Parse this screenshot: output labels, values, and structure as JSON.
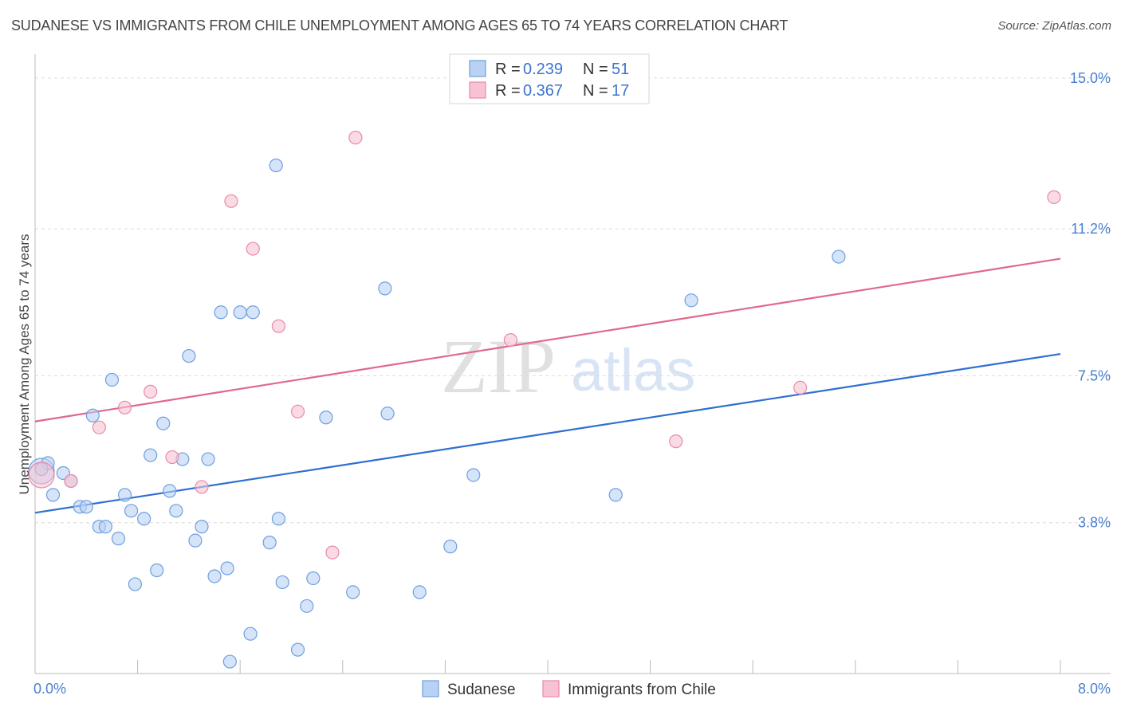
{
  "title": "SUDANESE VS IMMIGRANTS FROM CHILE UNEMPLOYMENT AMONG AGES 65 TO 74 YEARS CORRELATION CHART",
  "source": "Source: ZipAtlas.com",
  "watermark": {
    "part1": "ZIP",
    "part2": "atlas"
  },
  "chart_data": {
    "type": "scatter",
    "xlabel": "",
    "ylabel": "Unemployment Among Ages 65 to 74 years",
    "xlim": [
      0,
      8.0
    ],
    "ylim": [
      0,
      15.4
    ],
    "x_tick_labels": {
      "left": "0.0%",
      "right": "8.0%"
    },
    "y_ticks": [
      {
        "value": 3.8,
        "label": "3.8%"
      },
      {
        "value": 7.5,
        "label": "7.5%"
      },
      {
        "value": 11.2,
        "label": "11.2%"
      },
      {
        "value": 15.0,
        "label": "15.0%"
      }
    ],
    "series": [
      {
        "name": "Sudanese",
        "color": "#6f9fe0",
        "fill": "#b9d2f3",
        "line_color": "#2e6fd0",
        "R": "0.239",
        "N": "51",
        "trend": {
          "x": [
            0,
            8.0
          ],
          "y": [
            4.05,
            8.05
          ]
        },
        "points": [
          [
            0.05,
            5.1
          ],
          [
            0.1,
            5.3
          ],
          [
            0.14,
            4.5
          ],
          [
            0.22,
            5.05
          ],
          [
            0.28,
            4.85
          ],
          [
            0.35,
            4.2
          ],
          [
            0.4,
            4.2
          ],
          [
            0.45,
            6.5
          ],
          [
            0.5,
            3.7
          ],
          [
            0.55,
            3.7
          ],
          [
            0.6,
            7.4
          ],
          [
            0.65,
            3.4
          ],
          [
            0.7,
            4.5
          ],
          [
            0.75,
            4.1
          ],
          [
            0.78,
            2.25
          ],
          [
            0.85,
            3.9
          ],
          [
            0.9,
            5.5
          ],
          [
            0.95,
            2.6
          ],
          [
            1.0,
            6.3
          ],
          [
            1.05,
            4.6
          ],
          [
            1.1,
            4.1
          ],
          [
            1.15,
            5.4
          ],
          [
            1.2,
            8.0
          ],
          [
            1.25,
            3.35
          ],
          [
            1.3,
            3.7
          ],
          [
            1.35,
            5.4
          ],
          [
            1.4,
            2.45
          ],
          [
            1.45,
            9.1
          ],
          [
            1.5,
            2.65
          ],
          [
            1.52,
            0.3
          ],
          [
            1.6,
            9.1
          ],
          [
            1.68,
            1.0
          ],
          [
            1.7,
            9.1
          ],
          [
            1.83,
            3.3
          ],
          [
            1.88,
            12.8
          ],
          [
            1.9,
            3.9
          ],
          [
            1.93,
            2.3
          ],
          [
            2.05,
            0.6
          ],
          [
            2.12,
            1.7
          ],
          [
            2.17,
            2.4
          ],
          [
            2.27,
            6.45
          ],
          [
            2.48,
            2.05
          ],
          [
            2.73,
            9.7
          ],
          [
            2.75,
            6.55
          ],
          [
            3.0,
            2.05
          ],
          [
            3.24,
            3.2
          ],
          [
            3.42,
            5.0
          ],
          [
            4.53,
            4.5
          ],
          [
            5.12,
            9.4
          ],
          [
            6.27,
            10.5
          ],
          [
            0.05,
            5.15
          ]
        ]
      },
      {
        "name": "Immigrants from Chile",
        "color": "#e88aa8",
        "fill": "#f7c3d2",
        "line_color": "#e0688e",
        "R": "0.367",
        "N": "17",
        "trend": {
          "x": [
            0,
            8.0
          ],
          "y": [
            6.35,
            10.45
          ]
        },
        "points": [
          [
            0.05,
            5.0
          ],
          [
            0.28,
            4.85
          ],
          [
            0.5,
            6.2
          ],
          [
            0.7,
            6.7
          ],
          [
            0.9,
            7.1
          ],
          [
            1.07,
            5.45
          ],
          [
            1.3,
            4.7
          ],
          [
            1.53,
            11.9
          ],
          [
            1.7,
            10.7
          ],
          [
            1.9,
            8.75
          ],
          [
            2.05,
            6.6
          ],
          [
            2.32,
            3.05
          ],
          [
            2.5,
            13.5
          ],
          [
            3.71,
            8.4
          ],
          [
            5.0,
            5.85
          ],
          [
            5.97,
            7.2
          ],
          [
            7.95,
            12.0
          ]
        ]
      }
    ],
    "legend": {
      "r_label": "R =",
      "n_label": "N ="
    }
  }
}
